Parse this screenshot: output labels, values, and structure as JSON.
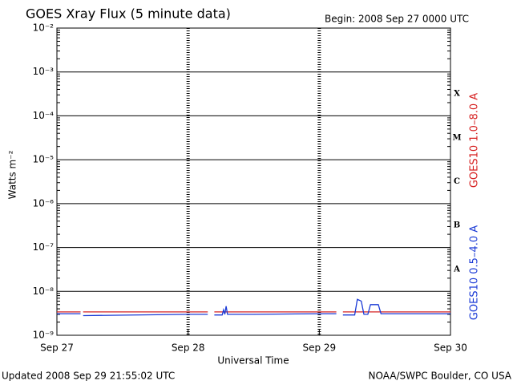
{
  "chart_data": {
    "type": "line",
    "title": "GOES Xray Flux (5 minute data)",
    "subtitle": "Begin:  2008 Sep 27 0000 UTC",
    "xlabel": "Universal Time",
    "ylabel": "Watts m⁻²",
    "footer_left": "Updated 2008 Sep 29 21:55:02 UTC",
    "footer_right": "NOAA/SWPC Boulder, CO USA",
    "class_labels": [
      "X",
      "M",
      "C",
      "B",
      "A"
    ],
    "log_scale": true,
    "grid": true,
    "xlim": [
      0,
      3
    ],
    "xticks": [
      {
        "value": 0,
        "label": "Sep 27"
      },
      {
        "value": 1,
        "label": "Sep 28"
      },
      {
        "value": 2,
        "label": "Sep 29"
      },
      {
        "value": 3,
        "label": "Sep 30"
      }
    ],
    "ylim": [
      1e-09,
      0.01
    ],
    "yticks": [
      {
        "value": 1e-09,
        "label": "10⁻⁹"
      },
      {
        "value": 1e-08,
        "label": "10⁻⁸"
      },
      {
        "value": 1e-07,
        "label": "10⁻⁷"
      },
      {
        "value": 1e-06,
        "label": "10⁻⁶"
      },
      {
        "value": 1e-05,
        "label": "10⁻⁵"
      },
      {
        "value": 0.0001,
        "label": "10⁻⁴"
      },
      {
        "value": 0.001,
        "label": "10⁻³"
      },
      {
        "value": 0.01,
        "label": "10⁻²"
      }
    ],
    "x": [
      0,
      0.18,
      0.19,
      0.2,
      1.0,
      1.15,
      1.17,
      1.2,
      1.26,
      1.27,
      1.28,
      1.29,
      1.3,
      1.5,
      2.0,
      2.13,
      2.15,
      2.18,
      2.27,
      2.29,
      2.32,
      2.34,
      2.37,
      2.39,
      2.45,
      2.47,
      3.0
    ],
    "series": [
      {
        "name": "GOES10 1.0–8.0 A",
        "color": "#d62020",
        "values": [
          3.4e-09,
          3.4e-09,
          null,
          3.4e-09,
          3.4e-09,
          3.4e-09,
          null,
          3.4e-09,
          3.4e-09,
          3.4e-09,
          3.4e-09,
          3.4e-09,
          3.4e-09,
          3.4e-09,
          3.4e-09,
          3.4e-09,
          null,
          3.4e-09,
          3.4e-09,
          3.4e-09,
          3.4e-09,
          3.4e-09,
          3.4e-09,
          3.4e-09,
          3.4e-09,
          3.4e-09,
          3.4e-09
        ]
      },
      {
        "name": "GOES10 0.5–4.0 A",
        "color": "#1a3ad6",
        "values": [
          3.1e-09,
          3.1e-09,
          null,
          2.8e-09,
          3e-09,
          3e-09,
          null,
          2.9e-09,
          2.9e-09,
          3.8e-09,
          3e-09,
          4.6e-09,
          3e-09,
          3e-09,
          3.1e-09,
          3.1e-09,
          null,
          2.9e-09,
          2.9e-09,
          6.6e-09,
          6e-09,
          3e-09,
          3e-09,
          5e-09,
          5e-09,
          3.1e-09,
          3.1e-09
        ]
      }
    ]
  }
}
